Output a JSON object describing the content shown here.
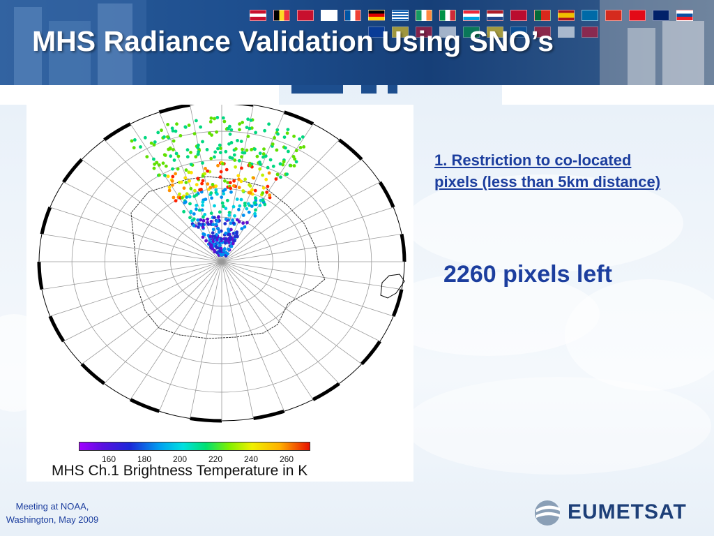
{
  "slide": {
    "title": "MHS Radiance Validation Using SNO’s",
    "point1": "1. Restriction to co-located pixels (less than 5km distance)",
    "result": "2260 pixels left",
    "footer_line1": "Meeting at NOAA,",
    "footer_line2": "Washington, May 2009",
    "logo_text": "EUMETSAT"
  },
  "colors": {
    "accent_text": "#1c3e9e",
    "header_blue": "#1d4e8e",
    "title_white": "#ffffff"
  },
  "icons": [
    "eumetsat-logo-icon",
    "country-flag-icon"
  ],
  "chart_data": {
    "type": "heatmap",
    "title": "",
    "colorbar_label": "MHS Ch.1 Brightness Temperature in K",
    "colorbar_ticks": [
      "160",
      "180",
      "200",
      "220",
      "240",
      "260"
    ],
    "colorbar_range": [
      140,
      275
    ],
    "projection": "south polar stereographic"
  }
}
